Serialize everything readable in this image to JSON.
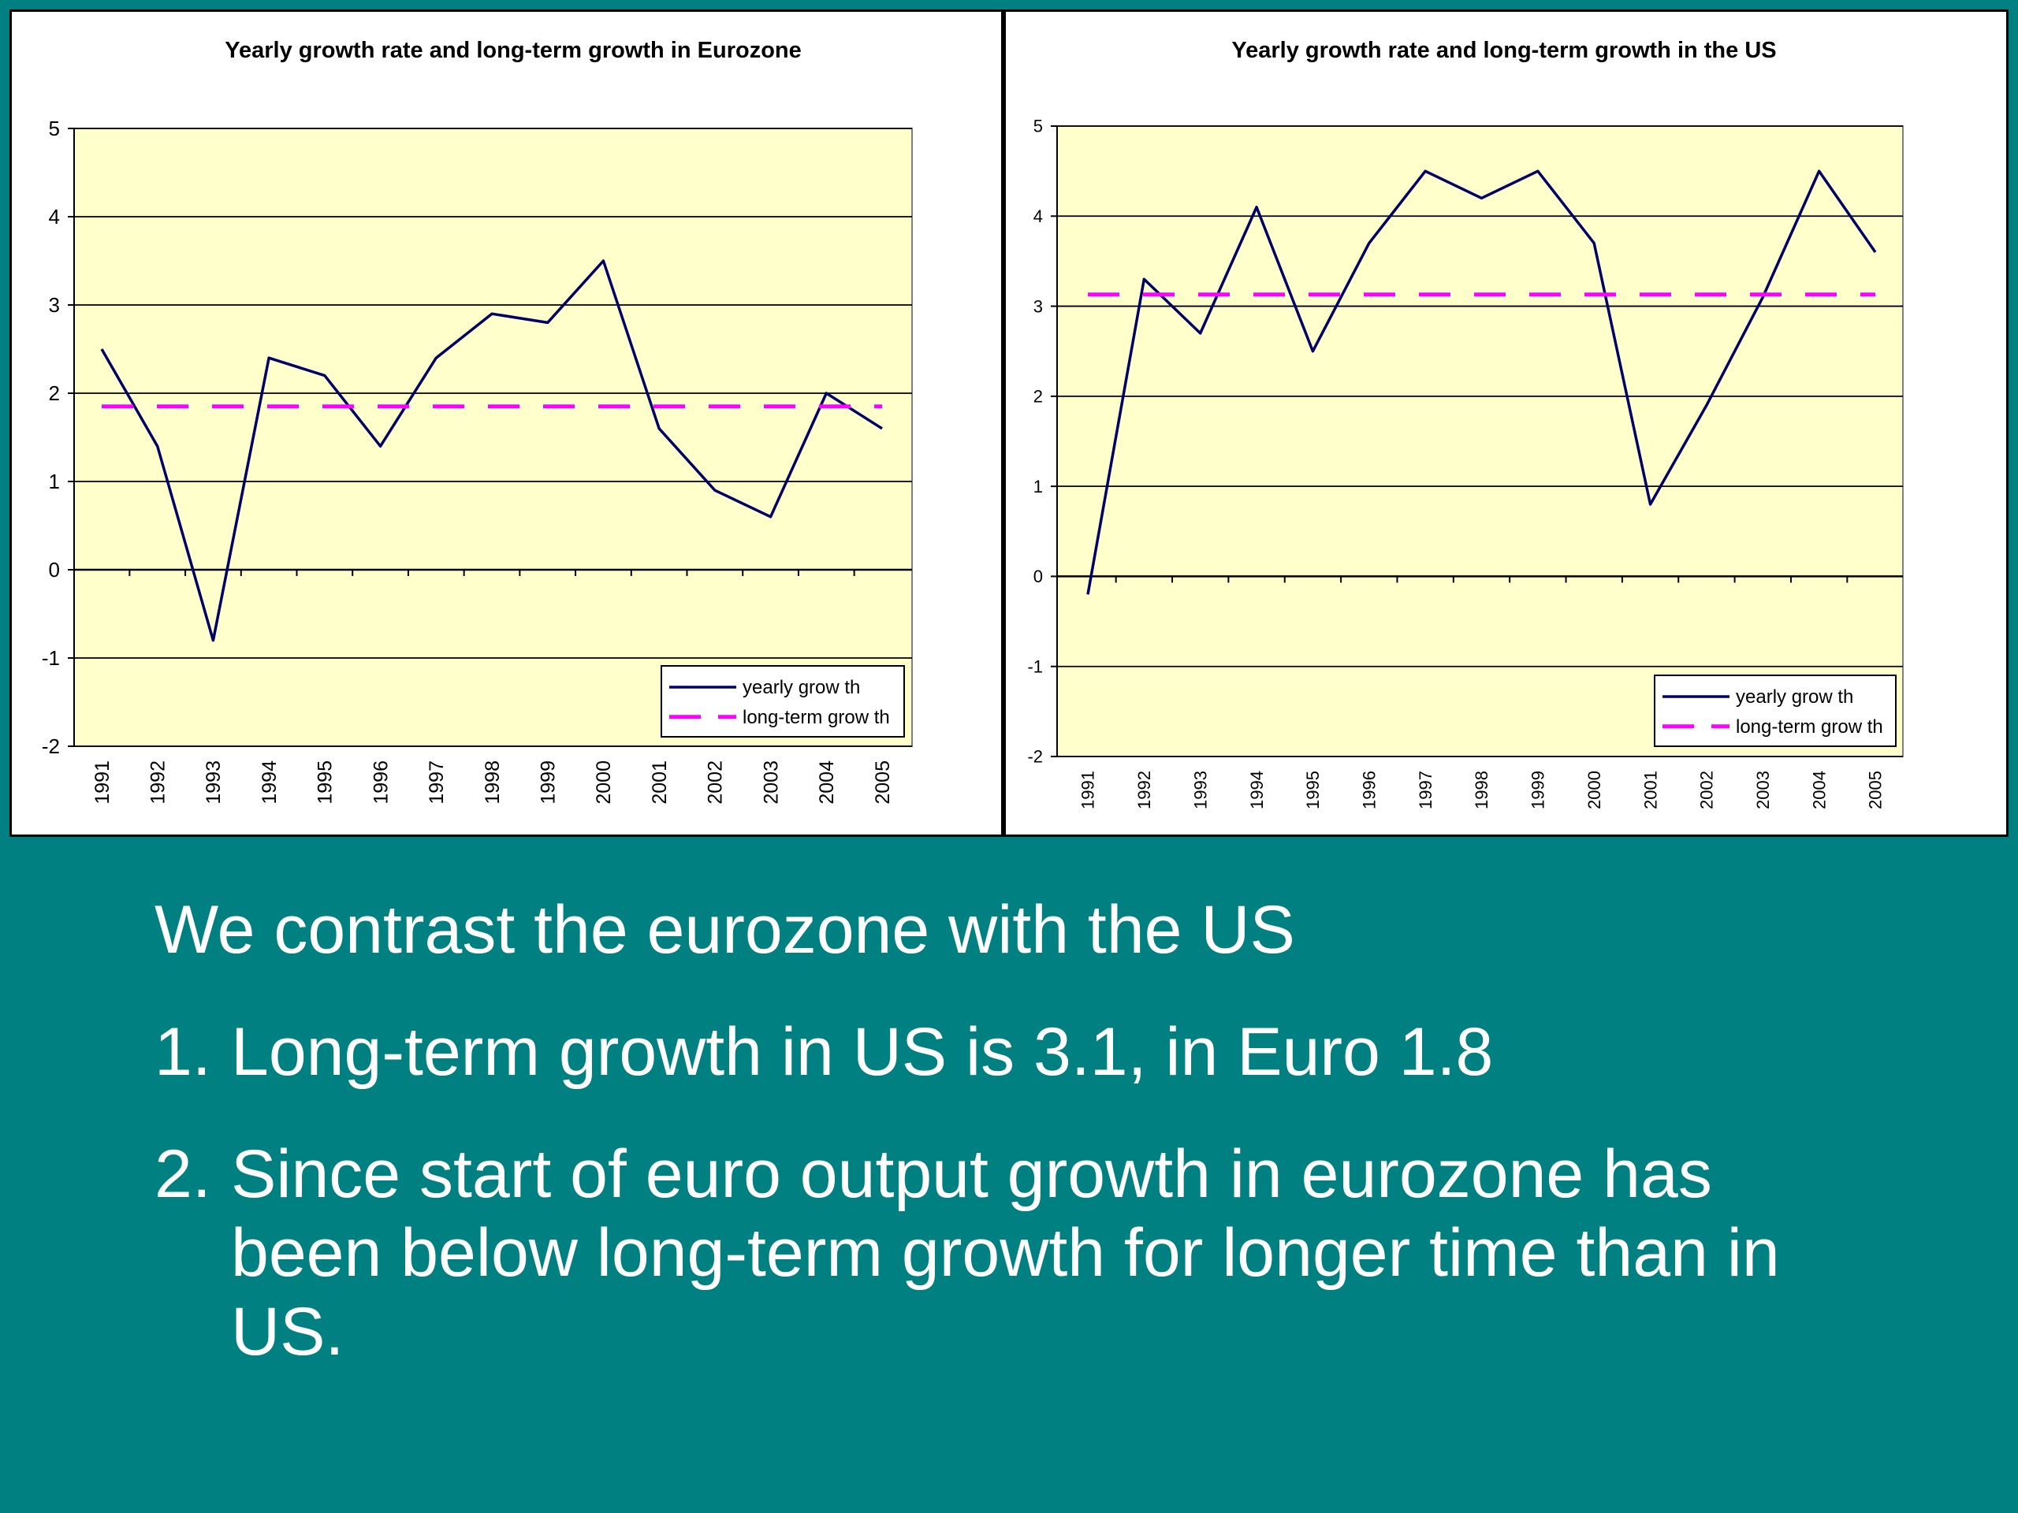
{
  "chart_data": [
    {
      "type": "line",
      "title": "Yearly growth rate and long-term growth in Eurozone",
      "categories": [
        "1991",
        "1992",
        "1993",
        "1994",
        "1995",
        "1996",
        "1997",
        "1998",
        "1999",
        "2000",
        "2001",
        "2002",
        "2003",
        "2004",
        "2005"
      ],
      "series": [
        {
          "name": "yearly grow th",
          "style": "solid",
          "color": "#000066",
          "values": [
            2.5,
            1.4,
            -0.8,
            2.4,
            2.2,
            1.4,
            2.4,
            2.9,
            2.8,
            3.5,
            1.6,
            0.9,
            0.6,
            2.0,
            1.6
          ]
        },
        {
          "name": "long-term grow th",
          "style": "dashed",
          "color": "#ff00ff",
          "values": [
            1.85,
            1.85,
            1.85,
            1.85,
            1.85,
            1.85,
            1.85,
            1.85,
            1.85,
            1.85,
            1.85,
            1.85,
            1.85,
            1.85,
            1.85
          ]
        }
      ],
      "ylim": [
        -2,
        5
      ],
      "yticks": [
        "5",
        "4",
        "3",
        "2",
        "1",
        "0",
        "-1",
        "-2"
      ],
      "grid": true,
      "legend": "bottom-right",
      "plot_background": "#ffffcc"
    },
    {
      "type": "line",
      "title": "Yearly growth rate and long-term growth in the US",
      "categories": [
        "1991",
        "1992",
        "1993",
        "1994",
        "1995",
        "1996",
        "1997",
        "1998",
        "1999",
        "2000",
        "2001",
        "2002",
        "2003",
        "2004",
        "2005"
      ],
      "series": [
        {
          "name": "yearly grow th",
          "style": "solid",
          "color": "#000066",
          "values": [
            -0.2,
            3.3,
            2.7,
            4.1,
            2.5,
            3.7,
            4.5,
            4.2,
            4.5,
            3.7,
            0.8,
            1.9,
            3.1,
            4.5,
            3.6
          ]
        },
        {
          "name": "long-term grow th",
          "style": "dashed",
          "color": "#ff00ff",
          "values": [
            3.13,
            3.13,
            3.13,
            3.13,
            3.13,
            3.13,
            3.13,
            3.13,
            3.13,
            3.13,
            3.13,
            3.13,
            3.13,
            3.13,
            3.13
          ]
        }
      ],
      "ylim": [
        -2,
        5
      ],
      "yticks": [
        "5",
        "4",
        "3",
        "2",
        "1",
        "0",
        "-1",
        "-2"
      ],
      "grid": true,
      "legend": "bottom-right",
      "plot_background": "#ffffcc"
    }
  ],
  "text": {
    "line1": "We contrast the eurozone with the US",
    "items": [
      {
        "number": "1.",
        "text": "Long-term growth in US is 3.1, in Euro 1.8"
      },
      {
        "number": "2.",
        "text": "Since start of euro output growth in eurozone has been below long-term growth for longer time than in US."
      }
    ]
  }
}
